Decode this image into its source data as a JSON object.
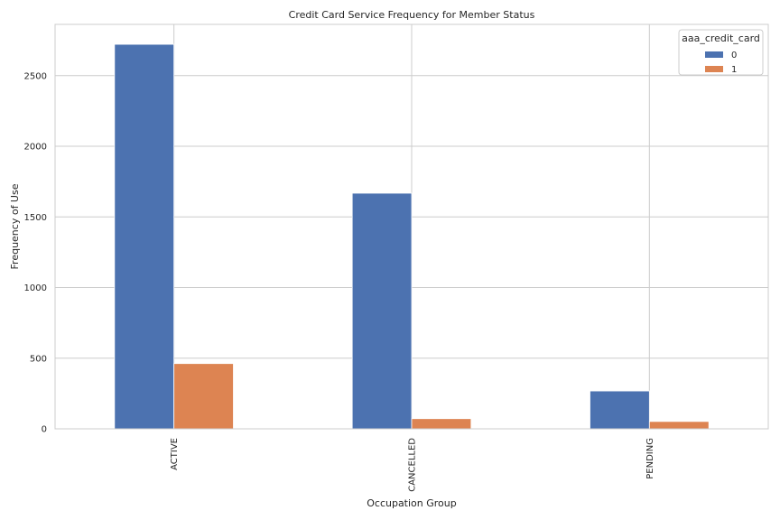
{
  "chart_data": {
    "type": "bar",
    "title": "Credit Card Service Frequency for Member Status",
    "xlabel": "Occupation Group",
    "ylabel": "Frequency of Use",
    "categories": [
      "ACTIVE",
      "CANCELLED",
      "PENDING"
    ],
    "series": [
      {
        "name": "0",
        "values": [
          2722,
          1668,
          268
        ],
        "color": "#4c72b0"
      },
      {
        "name": "1",
        "values": [
          462,
          72,
          52
        ],
        "color": "#dd8452"
      }
    ],
    "ylim": [
      0,
      2863
    ],
    "yticks": [
      0,
      500,
      1000,
      1500,
      2000,
      2500
    ],
    "grid": true,
    "legend": {
      "title": "aaa_credit_card",
      "placement": "top-right"
    },
    "colors": {
      "grid": "#cccccc",
      "axis_frame": "#cccccc",
      "text": "#262626",
      "background": "#ffffff"
    }
  }
}
